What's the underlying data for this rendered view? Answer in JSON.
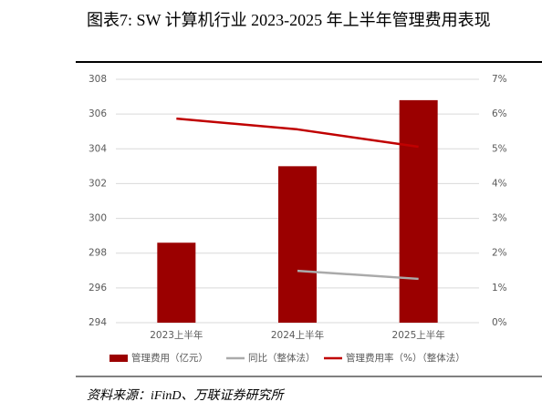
{
  "chart_data": {
    "type": "bar_line",
    "title": "图表7: SW 计算机行业 2023-2025 年上半年管理费用表现",
    "source": "资料来源：iFinD、万联证券研究所",
    "categories": [
      "2023上半年",
      "2024上半年",
      "2025上半年"
    ],
    "series": [
      {
        "name": "管理费用（亿元）",
        "type": "bar",
        "color": "#9b0000",
        "values": [
          298.6,
          303.0,
          306.8
        ]
      },
      {
        "name": "同比（整体法）",
        "type": "line",
        "axis": "y2",
        "color": "#aaaaaa",
        "values": [
          null,
          1.49,
          1.26
        ]
      },
      {
        "name": "管理费用率（%）（整体法）",
        "type": "line",
        "axis": "y2",
        "color": "#c00000",
        "values": [
          5.87,
          5.56,
          5.06
        ]
      }
    ],
    "ylim": [
      294,
      308
    ],
    "yticks": [
      294,
      296,
      298,
      300,
      302,
      304,
      306,
      308
    ],
    "y2lim": [
      0,
      7
    ],
    "y2ticks": [
      {
        "value": 0,
        "label": "0%"
      },
      {
        "value": 1,
        "label": "1%"
      },
      {
        "value": 2,
        "label": "2%"
      },
      {
        "value": 3,
        "label": "3%"
      },
      {
        "value": 4,
        "label": "4%"
      },
      {
        "value": 5,
        "label": "5%"
      },
      {
        "value": 6,
        "label": "6%"
      },
      {
        "value": 7,
        "label": "7%"
      }
    ],
    "grid": true,
    "legend": "bottom"
  }
}
